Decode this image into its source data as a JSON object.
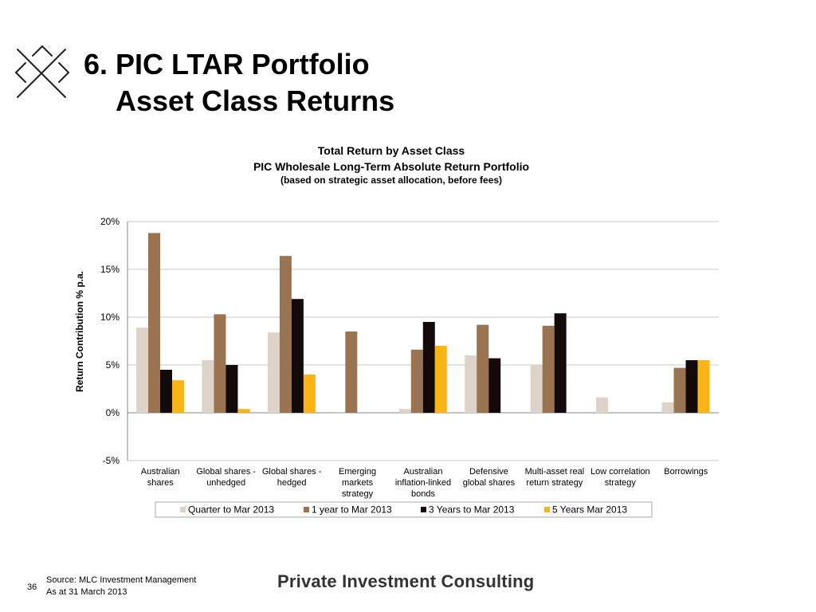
{
  "slide": {
    "title_line1": "6. PIC LTAR Portfolio",
    "title_line2": "Asset Class Returns",
    "page_number": "36"
  },
  "footer": {
    "source": "Source: MLC Investment Management",
    "as_at": "As at 31 March 2013",
    "brand": "Private Investment Consulting"
  },
  "chart_data": {
    "type": "bar",
    "title": "Total Return by Asset Class",
    "subtitle": "PIC Wholesale Long-Term Absolute Return Portfolio",
    "note": "(based on strategic asset allocation, before fees)",
    "xlabel": "",
    "ylabel": "Return Contribution % p.a.",
    "ylim": [
      -5,
      20
    ],
    "yticks": [
      -5,
      0,
      5,
      10,
      15,
      20
    ],
    "ytick_labels": [
      "-5%",
      "0%",
      "5%",
      "10%",
      "15%",
      "20%"
    ],
    "grid": true,
    "legend_position": "bottom",
    "categories": [
      [
        "Australian",
        "shares"
      ],
      [
        "Global shares -",
        "unhedged"
      ],
      [
        "Global shares -",
        "hedged"
      ],
      [
        "Emerging",
        "markets",
        "strategy"
      ],
      [
        "Australian",
        "inflation-linked",
        "bonds"
      ],
      [
        "Defensive",
        "global shares"
      ],
      [
        "Multi-asset real",
        "return strategy"
      ],
      [
        "Low correlation",
        "strategy"
      ],
      [
        "Borrowings"
      ]
    ],
    "series": [
      {
        "name": "Quarter to  Mar 2013",
        "color": "#ddd3c8",
        "values": [
          8.9,
          5.5,
          8.4,
          -0.1,
          0.4,
          6.0,
          5.0,
          1.6,
          1.1
        ]
      },
      {
        "name": "1 year to  Mar 2013",
        "color": "#9a7350",
        "values": [
          18.8,
          10.3,
          16.4,
          8.5,
          6.6,
          9.2,
          9.1,
          0,
          4.7
        ]
      },
      {
        "name": "3 Years to  Mar 2013",
        "color": "#140a0a",
        "values": [
          4.5,
          5.0,
          11.9,
          0,
          9.5,
          5.7,
          10.4,
          0,
          5.5
        ]
      },
      {
        "name": "5 Years Mar 2013",
        "color": "#fbb417",
        "values": [
          3.4,
          0.4,
          4.0,
          0,
          7.0,
          0,
          0,
          0,
          5.5
        ]
      }
    ]
  }
}
